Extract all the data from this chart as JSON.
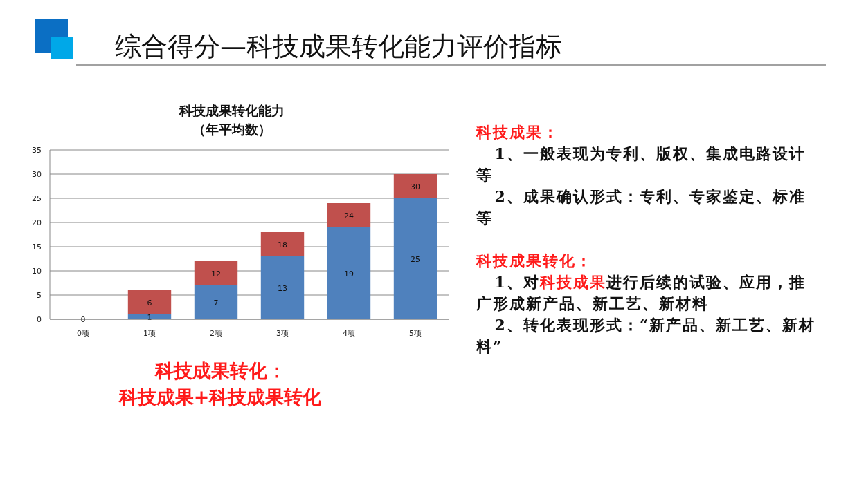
{
  "chart_data": {
    "type": "bar",
    "stacked": true,
    "title": "综合得分—科技成果转化能力评价指标",
    "subtitle": "科技成果转化能力（年平均数）",
    "categories": [
      "0项",
      "1项",
      "2项",
      "3项",
      "4项",
      "5项"
    ],
    "series": [
      {
        "color": "#4f81bd",
        "values": [
          0,
          1,
          7,
          13,
          19,
          25
        ],
        "value_labels": [
          "0",
          "1",
          "7",
          "13",
          "19",
          "25"
        ]
      },
      {
        "color": "#c0504d",
        "values": [
          0,
          5,
          5,
          5,
          5,
          5
        ]
      }
    ],
    "totals": [
      null,
      "6",
      "12",
      "18",
      "24",
      "30"
    ],
    "ylim": [
      0,
      35
    ],
    "yticks": [
      0,
      5,
      10,
      15,
      20,
      25,
      30,
      35
    ],
    "grid": "y",
    "annotations": [
      "科技成果转化：",
      "科技成果+科技成果转化",
      "科技成果：",
      "1、一般表现为专利、版权、集成电路设计等",
      "2、成果确认形式：专利、专家鉴定、标准等",
      "科技成果转化：",
      "1、对",
      "科技成果",
      "进行后续的试验、应用，推广形成新产品、新工艺、新材料",
      "2、转化表现形式：“新产品、新工艺、新材料”"
    ]
  }
}
